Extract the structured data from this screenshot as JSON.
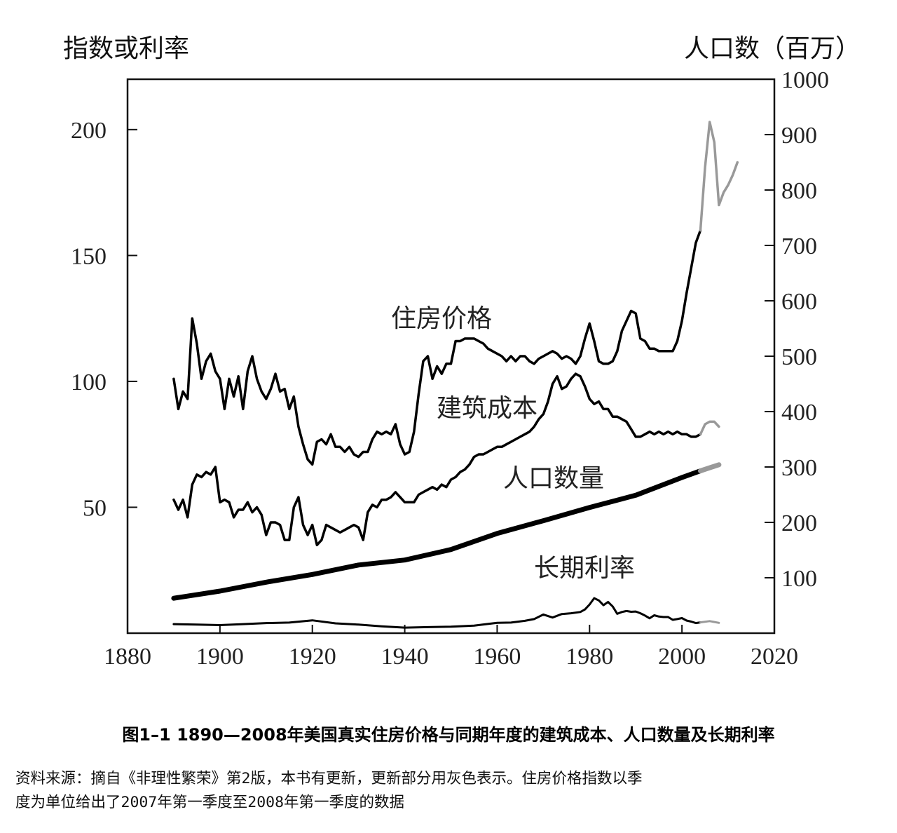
{
  "chart_data": {
    "type": "line",
    "left_axis": {
      "title": "指数或利率",
      "ylim": [
        0,
        220
      ],
      "ticks": [
        50,
        100,
        150,
        200
      ]
    },
    "right_axis": {
      "title": "人口数（百万）",
      "ylim": [
        0,
        1000
      ],
      "ticks": [
        100,
        200,
        300,
        400,
        500,
        600,
        700,
        800,
        900,
        1000
      ]
    },
    "x_axis": {
      "xlim": [
        1880,
        2020
      ],
      "ticks": [
        1880,
        1900,
        1920,
        1940,
        1960,
        1980,
        2000,
        2020
      ]
    },
    "grid": false,
    "series": [
      {
        "name": "住房价格",
        "axis": "left",
        "color": "#000000",
        "x": [
          1890,
          1891,
          1892,
          1893,
          1894,
          1895,
          1896,
          1897,
          1898,
          1899,
          1900,
          1901,
          1902,
          1903,
          1904,
          1905,
          1906,
          1907,
          1908,
          1909,
          1910,
          1911,
          1912,
          1913,
          1914,
          1915,
          1916,
          1917,
          1918,
          1919,
          1920,
          1921,
          1922,
          1923,
          1924,
          1925,
          1926,
          1927,
          1928,
          1929,
          1930,
          1931,
          1932,
          1933,
          1934,
          1935,
          1936,
          1937,
          1938,
          1939,
          1940,
          1941,
          1942,
          1943,
          1944,
          1945,
          1946,
          1947,
          1948,
          1949,
          1950,
          1951,
          1952,
          1953,
          1954,
          1955,
          1956,
          1957,
          1958,
          1959,
          1960,
          1961,
          1962,
          1963,
          1964,
          1965,
          1966,
          1967,
          1968,
          1969,
          1970,
          1971,
          1972,
          1973,
          1974,
          1975,
          1976,
          1977,
          1978,
          1979,
          1980,
          1981,
          1982,
          1983,
          1984,
          1985,
          1986,
          1987,
          1988,
          1989,
          1990,
          1991,
          1992,
          1993,
          1994,
          1995,
          1996,
          1997,
          1998,
          1999,
          2000,
          2001,
          2002,
          2003,
          2004
        ],
        "values": [
          101,
          89,
          96,
          93,
          125,
          115,
          101,
          108,
          111,
          104,
          101,
          89,
          101,
          94,
          102,
          89,
          104,
          110,
          101,
          96,
          93,
          97,
          103,
          96,
          97,
          89,
          94,
          82,
          75,
          69,
          67,
          76,
          77,
          75,
          79,
          74,
          74,
          72,
          74,
          71,
          70,
          72,
          72,
          77,
          80,
          79,
          80,
          79,
          83,
          75,
          71,
          72,
          80,
          95,
          108,
          110,
          101,
          106,
          103,
          107,
          107,
          116,
          116,
          117,
          117,
          117,
          116,
          115,
          113,
          112,
          111,
          110,
          108,
          110,
          108,
          110,
          110,
          108,
          107,
          109,
          110,
          111,
          112,
          111,
          109,
          110,
          109,
          107,
          110,
          117,
          123,
          116,
          108,
          107,
          107,
          108,
          112,
          120,
          124,
          128,
          127,
          117,
          116,
          113,
          113,
          112,
          112,
          112,
          112,
          116,
          124,
          135,
          145,
          155,
          160
        ],
        "update": {
          "color": "#999999",
          "x": [
            2004,
            2005,
            2006,
            2007,
            2008,
            2009,
            2010,
            2011,
            2012
          ],
          "values": [
            160,
            185,
            203,
            195,
            170,
            175,
            178,
            182,
            187
          ]
        }
      },
      {
        "name": "建筑成本",
        "axis": "left",
        "color": "#000000",
        "x": [
          1890,
          1891,
          1892,
          1893,
          1894,
          1895,
          1896,
          1897,
          1898,
          1899,
          1900,
          1901,
          1902,
          1903,
          1904,
          1905,
          1906,
          1907,
          1908,
          1909,
          1910,
          1911,
          1912,
          1913,
          1914,
          1915,
          1916,
          1917,
          1918,
          1919,
          1920,
          1921,
          1922,
          1923,
          1924,
          1925,
          1926,
          1927,
          1928,
          1929,
          1930,
          1931,
          1932,
          1933,
          1934,
          1935,
          1936,
          1937,
          1938,
          1939,
          1940,
          1941,
          1942,
          1943,
          1944,
          1945,
          1946,
          1947,
          1948,
          1949,
          1950,
          1951,
          1952,
          1953,
          1954,
          1955,
          1956,
          1957,
          1958,
          1959,
          1960,
          1961,
          1962,
          1963,
          1964,
          1965,
          1966,
          1967,
          1968,
          1969,
          1970,
          1971,
          1972,
          1973,
          1974,
          1975,
          1976,
          1977,
          1978,
          1979,
          1980,
          1981,
          1982,
          1983,
          1984,
          1985,
          1986,
          1987,
          1988,
          1989,
          1990,
          1991,
          1992,
          1993,
          1994,
          1995,
          1996,
          1997,
          1998,
          1999,
          2000,
          2001,
          2002,
          2003,
          2004
        ],
        "values": [
          53,
          49,
          53,
          46,
          59,
          63,
          62,
          64,
          63,
          66,
          52,
          53,
          52,
          46,
          49,
          49,
          52,
          48,
          50,
          47,
          39,
          44,
          44,
          43,
          37,
          37,
          50,
          54,
          43,
          39,
          43,
          35,
          37,
          43,
          42,
          41,
          40,
          41,
          42,
          43,
          42,
          37,
          48,
          51,
          50,
          53,
          53,
          54,
          56,
          54,
          52,
          52,
          52,
          55,
          56,
          57,
          58,
          57,
          59,
          58,
          61,
          62,
          64,
          65,
          67,
          70,
          71,
          71,
          72,
          73,
          74,
          74,
          75,
          76,
          77,
          78,
          79,
          80,
          82,
          85,
          87,
          92,
          99,
          102,
          97,
          98,
          101,
          103,
          102,
          98,
          93,
          91,
          92,
          89,
          89,
          86,
          86,
          85,
          84,
          81,
          78,
          78,
          79,
          80,
          79,
          80,
          79,
          80,
          79,
          80,
          79,
          79,
          78,
          78,
          79
        ],
        "update": {
          "color": "#999999",
          "x": [
            2004,
            2005,
            2006,
            2007,
            2008
          ],
          "values": [
            79,
            83,
            84,
            84,
            82
          ]
        }
      },
      {
        "name": "人口数量",
        "axis": "right",
        "color": "#000000",
        "x": [
          1890,
          1900,
          1910,
          1920,
          1930,
          1940,
          1950,
          1960,
          1970,
          1980,
          1990,
          2000,
          2004
        ],
        "values": [
          63,
          76,
          92,
          106,
          123,
          132,
          151,
          180,
          203,
          227,
          249,
          281,
          293
        ],
        "update": {
          "color": "#999999",
          "x": [
            2004,
            2008
          ],
          "values": [
            293,
            304
          ]
        }
      },
      {
        "name": "长期利率",
        "axis": "left",
        "color": "#000000",
        "x": [
          1890,
          1895,
          1900,
          1905,
          1910,
          1915,
          1920,
          1925,
          1930,
          1935,
          1940,
          1945,
          1950,
          1955,
          1960,
          1963,
          1966,
          1968,
          1970,
          1972,
          1974,
          1976,
          1978,
          1979,
          1980,
          1981,
          1982,
          1983,
          1984,
          1985,
          1986,
          1987,
          1988,
          1989,
          1990,
          1991,
          1992,
          1993,
          1994,
          1995,
          1996,
          1997,
          1998,
          1999,
          2000,
          2001,
          2002,
          2003,
          2004
        ],
        "values": [
          3.6,
          3.4,
          3.2,
          3.6,
          4.0,
          4.2,
          5.1,
          3.9,
          3.4,
          2.7,
          2.2,
          2.4,
          2.6,
          3.0,
          4.1,
          4.2,
          4.9,
          5.6,
          7.4,
          6.2,
          7.6,
          7.9,
          8.4,
          9.4,
          11.4,
          13.9,
          13.0,
          11.1,
          12.4,
          10.6,
          7.7,
          8.4,
          8.8,
          8.5,
          8.6,
          7.9,
          7.0,
          5.9,
          7.1,
          6.6,
          6.4,
          6.4,
          5.3,
          5.6,
          6.0,
          5.0,
          4.6,
          4.0,
          4.3
        ],
        "update": {
          "color": "#999999",
          "x": [
            2004,
            2006,
            2008
          ],
          "values": [
            4.3,
            4.8,
            4.1
          ]
        }
      }
    ]
  },
  "labels": {
    "caption": "图1–1 1890—2008年美国真实住房价格与同期年度的建筑成本、人口数量及长期利率",
    "source_line1": "资料来源：摘自《非理性繁荣》第2版，本书有更新，更新部分用灰色表示。住房价格指数以季",
    "source_line2": "度为单位给出了2007年第一季度至2008年第一季度的数据"
  }
}
